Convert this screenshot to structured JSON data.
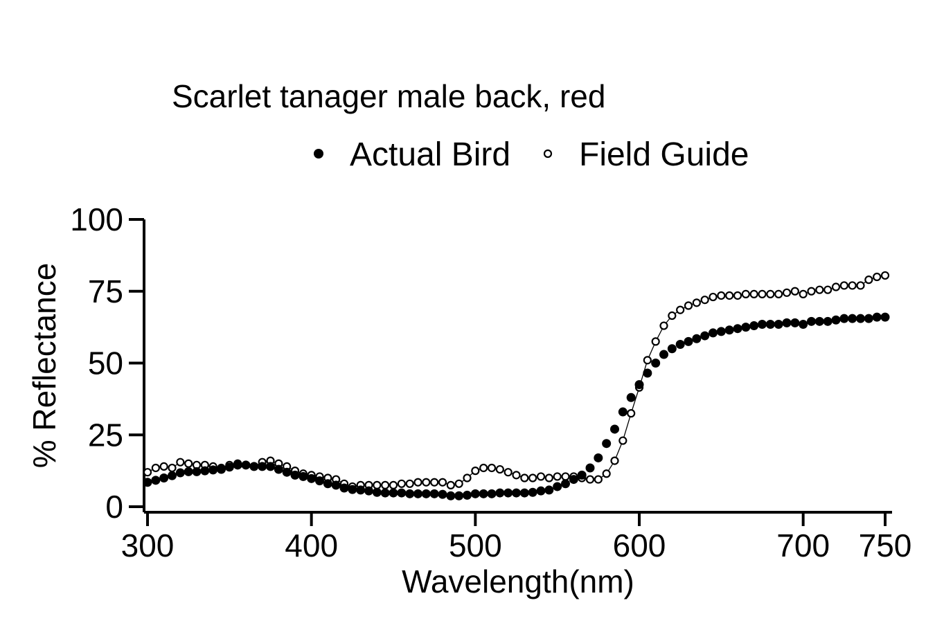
{
  "chart_data": {
    "type": "scatter",
    "title": "Scarlet tanager male back, red",
    "xlabel": "Wavelength(nm)",
    "ylabel": "% Reflectance",
    "xlim": [
      300,
      750
    ],
    "ylim": [
      0,
      100
    ],
    "xticks": [
      300,
      400,
      500,
      600,
      700,
      750
    ],
    "yticks": [
      0,
      25,
      50,
      75,
      100
    ],
    "grid": false,
    "legend_position": "top-center",
    "series": [
      {
        "name": "Actual Bird",
        "marker": "filled-circle",
        "line": false,
        "color": "#000000",
        "x": [
          300,
          305,
          310,
          315,
          320,
          325,
          330,
          335,
          340,
          345,
          350,
          355,
          360,
          365,
          370,
          375,
          380,
          385,
          390,
          395,
          400,
          405,
          410,
          415,
          420,
          425,
          430,
          435,
          440,
          445,
          450,
          455,
          460,
          465,
          470,
          475,
          480,
          485,
          490,
          495,
          500,
          505,
          510,
          515,
          520,
          525,
          530,
          535,
          540,
          545,
          550,
          555,
          560,
          565,
          570,
          575,
          580,
          585,
          590,
          595,
          600,
          605,
          610,
          615,
          620,
          625,
          630,
          635,
          640,
          645,
          650,
          655,
          660,
          665,
          670,
          675,
          680,
          685,
          690,
          695,
          700,
          705,
          710,
          715,
          720,
          725,
          730,
          735,
          740,
          745,
          750
        ],
        "y": [
          8.5,
          9.2,
          10,
          10.8,
          11.8,
          12.2,
          12.2,
          12.5,
          12.8,
          13,
          13.8,
          14.5,
          14.5,
          14,
          14,
          14,
          13,
          12,
          11,
          10.5,
          9.8,
          9,
          8,
          7.5,
          6.5,
          6,
          5.8,
          5.5,
          5,
          4.8,
          4.8,
          4.8,
          4.5,
          4.5,
          4.5,
          4.5,
          4.3,
          3.8,
          3.8,
          4,
          4.5,
          4.5,
          4.5,
          4.8,
          4.8,
          4.8,
          4.8,
          5,
          5.5,
          5.8,
          7,
          8,
          9.5,
          11,
          13.5,
          17,
          22,
          27,
          33,
          38,
          42.5,
          46.5,
          50,
          53,
          55,
          56.5,
          57.5,
          58.5,
          59.5,
          60.5,
          61,
          61.5,
          62,
          62.5,
          63,
          63.5,
          63.5,
          63.5,
          64,
          64,
          63.5,
          64.5,
          64.5,
          64.5,
          65,
          65.5,
          65.5,
          65.5,
          65.5,
          66,
          66
        ]
      },
      {
        "name": "Field Guide",
        "marker": "open-circle",
        "line": true,
        "color": "#000000",
        "x": [
          300,
          305,
          310,
          315,
          320,
          325,
          330,
          335,
          340,
          345,
          350,
          355,
          360,
          365,
          370,
          375,
          380,
          385,
          390,
          395,
          400,
          405,
          410,
          415,
          420,
          425,
          430,
          435,
          440,
          445,
          450,
          455,
          460,
          465,
          470,
          475,
          480,
          485,
          490,
          495,
          500,
          505,
          510,
          515,
          520,
          525,
          530,
          535,
          540,
          545,
          550,
          555,
          560,
          565,
          570,
          575,
          580,
          585,
          590,
          595,
          600,
          605,
          610,
          615,
          620,
          625,
          630,
          635,
          640,
          645,
          650,
          655,
          660,
          665,
          670,
          675,
          680,
          685,
          690,
          695,
          700,
          705,
          710,
          715,
          720,
          725,
          730,
          735,
          740,
          745,
          750
        ],
        "y": [
          12,
          13.5,
          14,
          13.5,
          15.5,
          15,
          14.5,
          14.5,
          14,
          13.5,
          14.5,
          15,
          14.5,
          14,
          15.5,
          16,
          15,
          14,
          12.5,
          11.5,
          11,
          10.5,
          10,
          9.5,
          8,
          7,
          7.5,
          7.5,
          7.5,
          7.5,
          7.5,
          8,
          8,
          8.5,
          8.5,
          8.5,
          8.5,
          7.5,
          8,
          10,
          12.5,
          13.5,
          13.5,
          13,
          12,
          11,
          10,
          10,
          10.5,
          10,
          10.5,
          10.5,
          10.5,
          10,
          9.5,
          9.5,
          11.5,
          16,
          23,
          32.5,
          41.5,
          51,
          57.5,
          63,
          66.5,
          68.5,
          70,
          71,
          72,
          73,
          73.5,
          73.5,
          73.5,
          74,
          74,
          74,
          74,
          74,
          74.5,
          75,
          74,
          75,
          75.5,
          75.5,
          76.5,
          77,
          77,
          77,
          79,
          80,
          80.5
        ]
      }
    ]
  }
}
